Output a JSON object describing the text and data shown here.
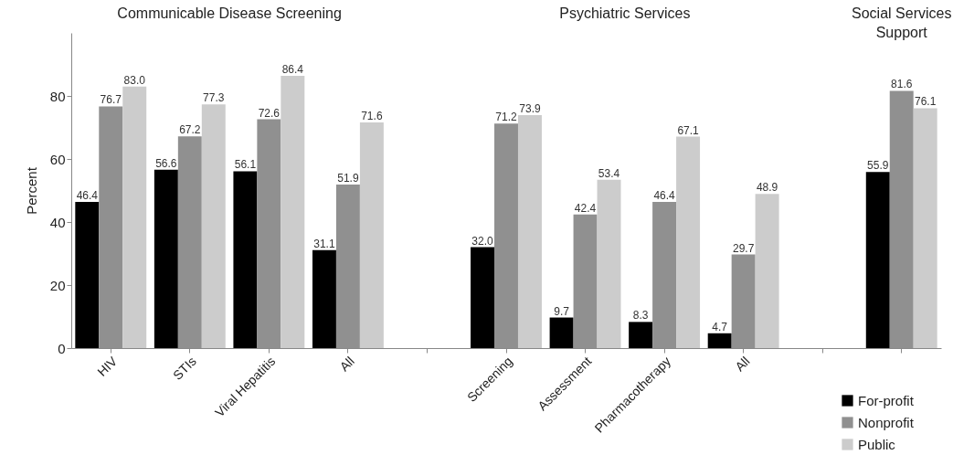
{
  "chart_data": {
    "type": "bar",
    "ylabel": "Percent",
    "categories": [
      "HIV",
      "STIs",
      "Viral Hepatitis",
      "All",
      null,
      "Screening",
      "Assessment",
      "Pharmacotherapy",
      "All",
      null,
      null
    ],
    "series": [
      {
        "name": "For-profit",
        "color": "#000000",
        "values": [
          46.4,
          56.6,
          56.1,
          31.1,
          null,
          32,
          9.7,
          8.3,
          4.7,
          null,
          55.9
        ],
        "value_labels": [
          "46.4",
          "56.6",
          "56.1",
          "31.1",
          null,
          "32.0",
          "9.7",
          "8.3",
          "4.7",
          null,
          "55.9"
        ]
      },
      {
        "name": "Nonprofit",
        "color": "#909090",
        "values": [
          76.7,
          67.2,
          72.6,
          51.9,
          null,
          71.2,
          42.4,
          46.4,
          29.7,
          null,
          81.6
        ],
        "value_labels": [
          "76.7",
          "67.2",
          "72.6",
          "51.9",
          null,
          "71.2",
          "42.4",
          "46.4",
          "29.7",
          null,
          "81.6"
        ]
      },
      {
        "name": "Public",
        "color": "#cccccc",
        "values": [
          83,
          77.3,
          86.4,
          71.6,
          null,
          73.9,
          53.4,
          67.1,
          48.9,
          null,
          76.1
        ],
        "value_labels": [
          "83.0",
          "77.3",
          "86.4",
          "71.6",
          null,
          "73.9",
          "53.4",
          "67.1",
          "48.9",
          null,
          "76.1"
        ]
      }
    ],
    "ylim": [
      0,
      100
    ],
    "yticks": [
      0,
      20,
      40,
      60,
      80
    ],
    "annotations": [
      "Communicable Disease Screening",
      "Psychiatric Services",
      "Social Services\nSupport"
    ],
    "legend": "bottom right",
    "grid": false
  }
}
